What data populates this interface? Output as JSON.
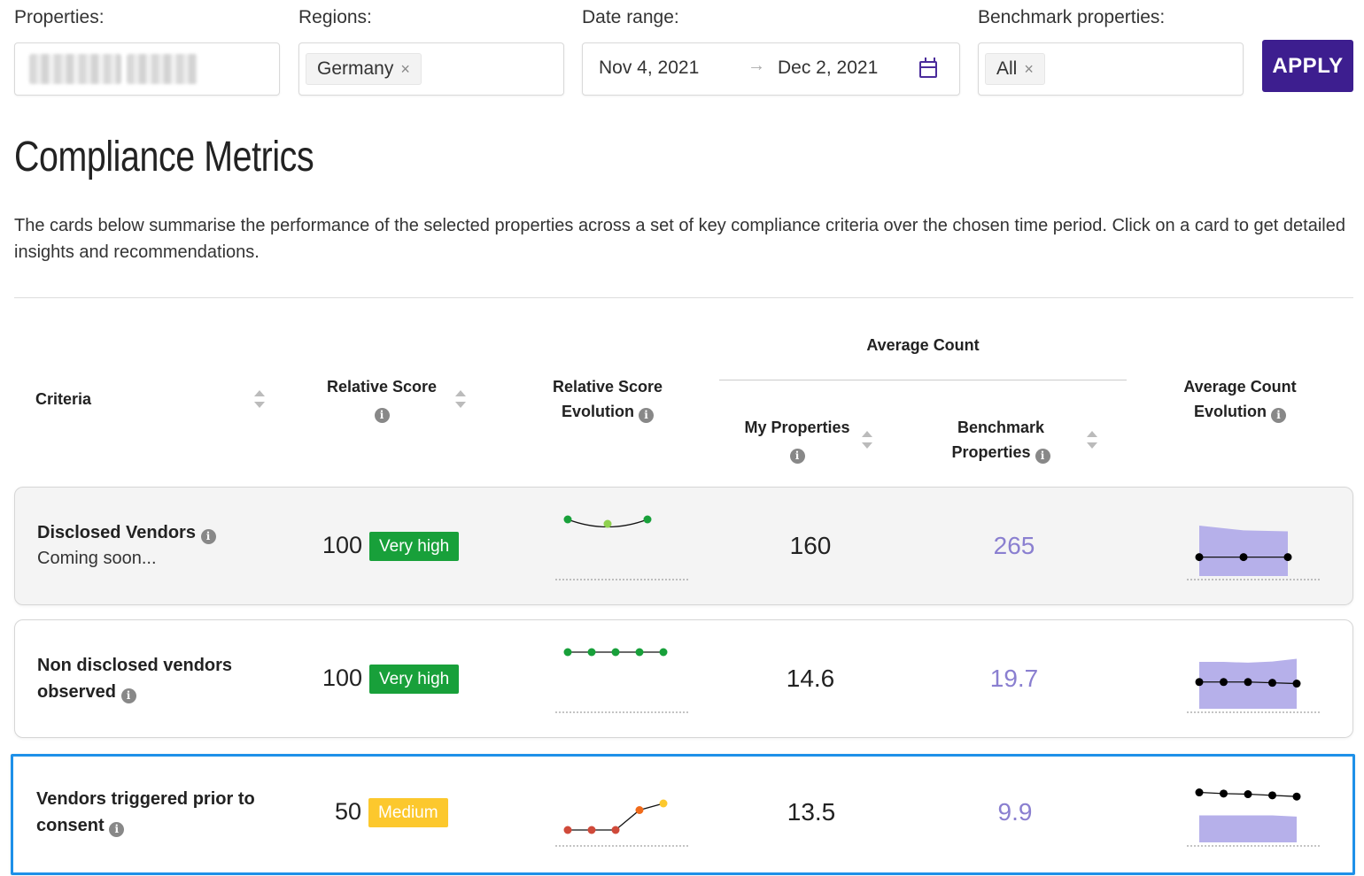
{
  "filters": {
    "properties_label": "Properties:",
    "regions_label": "Regions:",
    "region_tag": "Germany",
    "date_range_label": "Date range:",
    "date_start": "Nov 4, 2021",
    "date_arrow": "→",
    "date_end": "Dec 2, 2021",
    "benchmark_label": "Benchmark properties:",
    "benchmark_tag": "All",
    "remove_glyph": "×",
    "apply_label": "APPLY"
  },
  "header": {
    "title": "Compliance Metrics",
    "description": "The cards below summarise the performance of the selected properties across a set of key compliance criteria over the chosen time period. Click on a card to get detailed insights and recommendations."
  },
  "columns": {
    "criteria": "Criteria",
    "relative_score": "Relative Score",
    "relative_score_evolution_1": "Relative Score",
    "relative_score_evolution_2": "Evolution",
    "average_count": "Average Count",
    "my_properties": "My Properties",
    "benchmark_1": "Benchmark",
    "benchmark_2": "Properties",
    "average_count_evolution_1": "Average Count",
    "average_count_evolution_2": "Evolution",
    "info_glyph": "i"
  },
  "rows": [
    {
      "name": "Disclosed Vendors",
      "subtitle": "Coming soon...",
      "score": "100",
      "level": "Very high",
      "level_color": "#18a03a",
      "my_properties": "160",
      "benchmark": "265",
      "score_evolution": {
        "values": [
          100,
          90,
          100
        ],
        "colors": [
          "#18a03a",
          "#8fd14f",
          "#18a03a"
        ]
      },
      "count_evolution": {
        "mine": [
          160,
          160,
          160
        ],
        "benchmark": [
          280,
          262,
          258
        ]
      }
    },
    {
      "name_line1": "Non disclosed vendors",
      "name_line2": "observed",
      "score": "100",
      "level": "Very high",
      "level_color": "#18a03a",
      "my_properties": "14.6",
      "benchmark": "19.7",
      "score_evolution": {
        "values": [
          100,
          100,
          100,
          100,
          100
        ],
        "colors": [
          "#18a03a",
          "#18a03a",
          "#18a03a",
          "#18a03a",
          "#18a03a"
        ]
      },
      "count_evolution": {
        "mine": [
          14.6,
          14.6,
          14.6,
          14.4,
          14.2
        ],
        "benchmark": [
          19.7,
          19.7,
          19.5,
          19.8,
          20.5
        ]
      }
    },
    {
      "name_line1": "Vendors triggered prior to",
      "name_line2": "consent",
      "score": "50",
      "level": "Medium",
      "level_color": "#fcc82d",
      "my_properties": "13.5",
      "benchmark": "9.9",
      "score_evolution": {
        "values": [
          0,
          0,
          0,
          45,
          60
        ],
        "colors": [
          "#d04a3a",
          "#d04a3a",
          "#d04a3a",
          "#f06a1a",
          "#fcc82d"
        ]
      },
      "count_evolution": {
        "mine": [
          13.8,
          13.6,
          13.5,
          13.3,
          13.1
        ],
        "benchmark": [
          9.9,
          9.9,
          9.9,
          9.9,
          9.7
        ]
      }
    }
  ],
  "colors": {
    "accent": "#3d1e8f",
    "selected_border": "#1e90e8",
    "benchmark_text": "#8a7fd0",
    "area_fill": "#b6b0ea"
  }
}
